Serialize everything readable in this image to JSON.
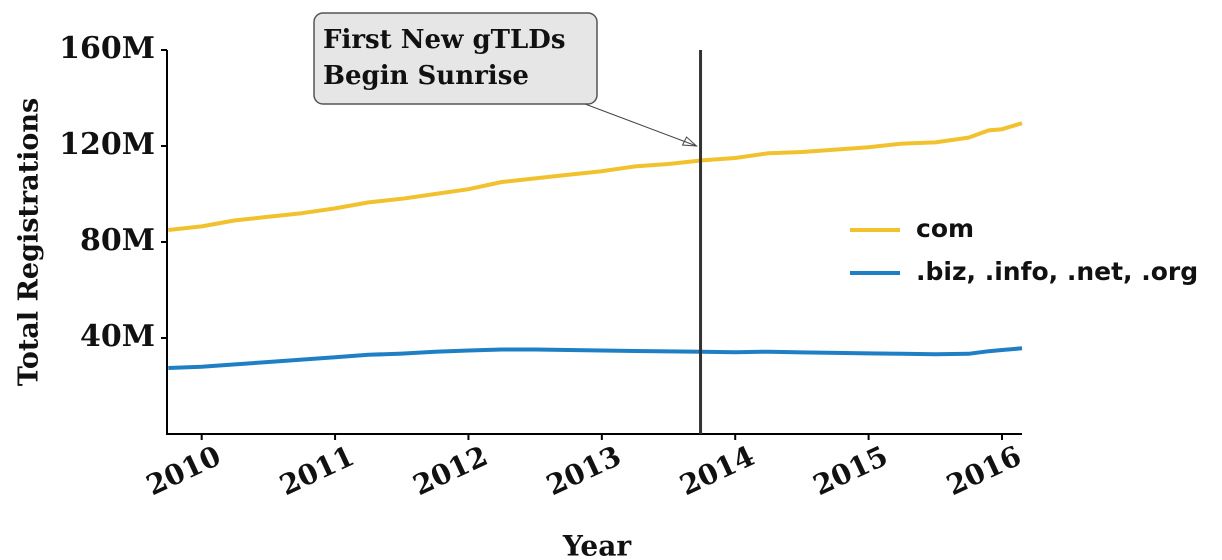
{
  "chart_data": {
    "type": "line",
    "xlabel": "Year",
    "ylabel": "Total Registrations",
    "x": [
      2009.75,
      2010.0,
      2010.25,
      2010.5,
      2010.75,
      2011.0,
      2011.25,
      2011.5,
      2011.75,
      2012.0,
      2012.25,
      2012.5,
      2012.75,
      2013.0,
      2013.25,
      2013.5,
      2013.75,
      2014.0,
      2014.25,
      2014.5,
      2014.75,
      2015.0,
      2015.25,
      2015.5,
      2015.75,
      2015.9,
      2016.0,
      2016.15
    ],
    "series": [
      {
        "name": "com",
        "color": "#f2c12e",
        "values": [
          85000000,
          86500000,
          89000000,
          90500000,
          92000000,
          94000000,
          96500000,
          98000000,
          100000000,
          102000000,
          105000000,
          106500000,
          108000000,
          109500000,
          111500000,
          112500000,
          114000000,
          115000000,
          117000000,
          117500000,
          118500000,
          119500000,
          121000000,
          121500000,
          123500000,
          126500000,
          127000000,
          129500000
        ]
      },
      {
        "name": ".biz, .info, .net, .org",
        "color": "#1f7fc4",
        "values": [
          27500000,
          28000000,
          29000000,
          30000000,
          31000000,
          32000000,
          33000000,
          33500000,
          34300000,
          34800000,
          35200000,
          35200000,
          35000000,
          34800000,
          34600000,
          34400000,
          34300000,
          34100000,
          34300000,
          34000000,
          33800000,
          33600000,
          33400000,
          33200000,
          33400000,
          34500000,
          35000000,
          35700000
        ]
      }
    ],
    "xlim": [
      2009.74,
      2016.15
    ],
    "xticks": [
      2010,
      2011,
      2012,
      2013,
      2014,
      2015,
      2016
    ],
    "ylim": [
      0,
      160000000
    ],
    "yticks": [
      {
        "value": 40000000,
        "label": "40M"
      },
      {
        "value": 80000000,
        "label": "80M"
      },
      {
        "value": 120000000,
        "label": "120M"
      },
      {
        "value": 160000000,
        "label": "160M"
      }
    ],
    "vline": {
      "x": 2013.74,
      "color": "#333333"
    },
    "annotation": {
      "text": [
        "First New gTLDs",
        "Begin Sunrise"
      ],
      "x": 2013.74,
      "y": 120000000
    },
    "legend": "right",
    "grid": false
  }
}
